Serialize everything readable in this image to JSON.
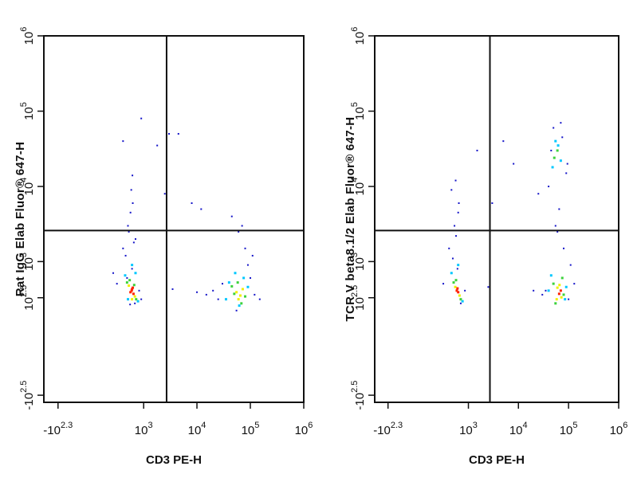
{
  "chart_data": [
    {
      "type": "scatter",
      "x_label": "CD3 PE-H",
      "y_label": "Rat IgG Elab Fluor® 647-H",
      "xscale": "biexponential",
      "yscale": "biexponential",
      "xlim": [
        -400,
        1000000
      ],
      "ylim": [
        -400,
        1000000
      ],
      "xticks": [
        {
          "value": -199.5,
          "label": "-10",
          "exponent": "2.3"
        },
        {
          "value": 1000,
          "label": "10",
          "exponent": "3"
        },
        {
          "value": 10000,
          "label": "10",
          "exponent": "4"
        },
        {
          "value": 100000,
          "label": "10",
          "exponent": "5"
        },
        {
          "value": 1000000,
          "label": "10",
          "exponent": "6"
        }
      ],
      "yticks": [
        {
          "value": -316,
          "label": "-10",
          "exponent": "2.5"
        },
        {
          "value": 316,
          "label": "10",
          "exponent": "2.5"
        },
        {
          "value": 1000,
          "label": "10",
          "exponent": "3"
        },
        {
          "value": 10000,
          "label": "10",
          "exponent": "4"
        },
        {
          "value": 100000,
          "label": "10",
          "exponent": "5"
        },
        {
          "value": 1000000,
          "label": "10",
          "exponent": "6"
        }
      ],
      "gates": {
        "x": 2700,
        "y": 2600
      },
      "series": [
        {
          "color": "#1414c8",
          "x": [
            400,
            500,
            620,
            700,
            560,
            450,
            650,
            580,
            520,
            600,
            480,
            680,
            550,
            610,
            300,
            820,
            900,
            250,
            20000,
            25000,
            30000,
            100000,
            120000,
            150000,
            80000,
            60000,
            45000,
            70000,
            90000,
            55000,
            15000,
            10000,
            110000,
            3000,
            4500,
            1800,
            2500,
            8000,
            12000,
            3500,
            900,
            400
          ],
          "y": [
            1500,
            3000,
            6000,
            2000,
            4500,
            1200,
            1800,
            9000,
            2500,
            800,
            600,
            260,
            250,
            14000,
            500,
            400,
            300,
            700,
            400,
            300,
            500,
            600,
            350,
            300,
            1500,
            2500,
            4000,
            3000,
            900,
            200,
            350,
            380,
            1200,
            50000,
            50000,
            35000,
            8000,
            6000,
            5000,
            420,
            80000,
            40000
          ]
        },
        {
          "color": "#00c8ff",
          "x": [
            440,
            780,
            500,
            700,
            600,
            35000,
            90000,
            40000,
            75000,
            62000,
            52000
          ],
          "y": [
            650,
            280,
            300,
            700,
            900,
            300,
            450,
            520,
            600,
            240,
            700
          ]
        },
        {
          "color": "#3cd23c",
          "x": [
            480,
            720,
            540,
            660,
            45000,
            80000,
            58000,
            68000,
            50000
          ],
          "y": [
            520,
            300,
            560,
            480,
            460,
            330,
            520,
            260,
            360
          ]
        },
        {
          "color": "#f0f000",
          "x": [
            520,
            680,
            600,
            55000,
            65000,
            72000,
            60000
          ],
          "y": [
            470,
            330,
            300,
            380,
            340,
            420,
            300
          ]
        },
        {
          "color": "#ff2000",
          "x": [
            560,
            600,
            640,
            590,
            620
          ],
          "y": [
            380,
            420,
            360,
            400,
            440
          ]
        }
      ]
    },
    {
      "type": "scatter",
      "x_label": "CD3 PE-H",
      "y_label": "TCR V beta8.1/2 Elab Fluor® 647-H",
      "xscale": "biexponential",
      "yscale": "biexponential",
      "xlim": [
        -400,
        1000000
      ],
      "ylim": [
        -400,
        1000000
      ],
      "xticks": [
        {
          "value": -199.5,
          "label": "-10",
          "exponent": "2.3"
        },
        {
          "value": 1000,
          "label": "10",
          "exponent": "3"
        },
        {
          "value": 10000,
          "label": "10",
          "exponent": "4"
        },
        {
          "value": 100000,
          "label": "10",
          "exponent": "5"
        },
        {
          "value": 1000000,
          "label": "10",
          "exponent": "6"
        }
      ],
      "yticks": [
        {
          "value": -316,
          "label": "-10",
          "exponent": "2.5"
        },
        {
          "value": 316,
          "label": "10",
          "exponent": "2.5"
        },
        {
          "value": 1000,
          "label": "10",
          "exponent": "3"
        },
        {
          "value": 10000,
          "label": "10",
          "exponent": "4"
        },
        {
          "value": 100000,
          "label": "10",
          "exponent": "5"
        },
        {
          "value": 1000000,
          "label": "10",
          "exponent": "6"
        }
      ],
      "gates": {
        "x": 2700,
        "y": 2600
      },
      "series": [
        {
          "color": "#1414c8",
          "x": [
            400,
            520,
            640,
            560,
            480,
            600,
            700,
            300,
            850,
            550,
            620,
            450,
            20000,
            30000,
            100000,
            130000,
            80000,
            60000,
            40000,
            90000,
            50000,
            70000,
            25000,
            110000,
            65000,
            45000,
            75000,
            55000,
            35000,
            95000,
            3000,
            5000,
            1500,
            8000,
            2500
          ],
          "y": [
            1500,
            3000,
            6000,
            2200,
            1100,
            800,
            260,
            500,
            400,
            12000,
            4500,
            9000,
            400,
            350,
            300,
            500,
            1500,
            2500,
            10000,
            15000,
            60000,
            70000,
            8000,
            900,
            5000,
            30000,
            45000,
            3000,
            400,
            20000,
            6000,
            40000,
            30000,
            20000,
            450
          ]
        },
        {
          "color": "#00c8ff",
          "x": [
            450,
            760,
            620,
            40000,
            90000,
            45000,
            85000,
            48000,
            62000,
            70000,
            55000
          ],
          "y": [
            700,
            280,
            900,
            400,
            450,
            650,
            300,
            18000,
            35000,
            22000,
            40000
          ]
        },
        {
          "color": "#3cd23c",
          "x": [
            500,
            700,
            560,
            50000,
            80000,
            55000,
            75000,
            52000,
            60000
          ],
          "y": [
            520,
            300,
            560,
            500,
            350,
            260,
            600,
            24000,
            30000
          ]
        },
        {
          "color": "#f0f000",
          "x": [
            540,
            660,
            60000,
            72000,
            58000,
            66000
          ],
          "y": [
            450,
            340,
            440,
            320,
            300,
            480
          ]
        },
        {
          "color": "#ff2000",
          "x": [
            580,
            620,
            600,
            65000,
            70000
          ],
          "y": [
            400,
            380,
            430,
            360,
            400
          ]
        }
      ]
    }
  ]
}
